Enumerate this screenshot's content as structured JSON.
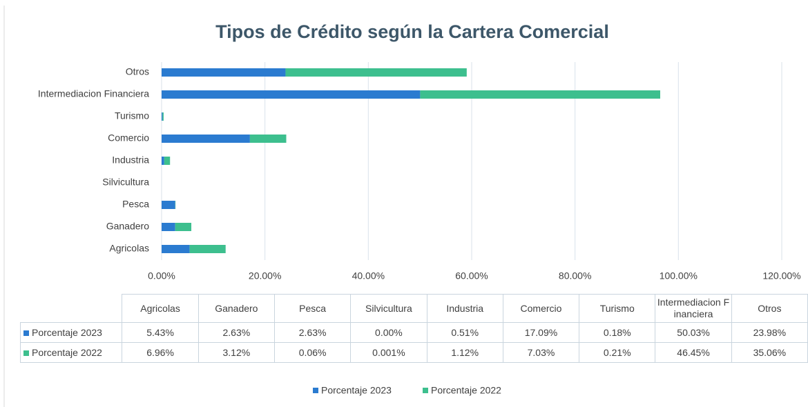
{
  "chart_data": {
    "type": "stacked_barh",
    "title": "Tipos de Crédito según la Cartera Comercial",
    "categories": [
      "Agricolas",
      "Ganadero",
      "Pesca",
      "Silvicultura",
      "Industria",
      "Comercio",
      "Turismo",
      "Intermediacion Financiera",
      "Otros"
    ],
    "series": [
      {
        "name": "Porcentaje 2023",
        "color": "#2b7bd0",
        "values": [
          5.43,
          2.63,
          2.63,
          0.0,
          0.51,
          17.09,
          0.18,
          50.03,
          23.98
        ],
        "value_labels": [
          "5.43%",
          "2.63%",
          "2.63%",
          "0.00%",
          "0.51%",
          "17.09%",
          "0.18%",
          "50.03%",
          "23.98%"
        ]
      },
      {
        "name": "Porcentaje 2022",
        "color": "#3dbf8e",
        "values": [
          6.96,
          3.12,
          0.06,
          0.001,
          1.12,
          7.03,
          0.21,
          46.45,
          35.06
        ],
        "value_labels": [
          "6.96%",
          "3.12%",
          "0.06%",
          "0.001%",
          "1.12%",
          "7.03%",
          "0.21%",
          "46.45%",
          "35.06%"
        ]
      }
    ],
    "xlim": [
      0,
      120
    ],
    "xticks": [
      {
        "value": 0,
        "label": "0.00%"
      },
      {
        "value": 20,
        "label": "20.00%"
      },
      {
        "value": 40,
        "label": "40.00%"
      },
      {
        "value": 60,
        "label": "60.00%"
      },
      {
        "value": 80,
        "label": "80.00%"
      },
      {
        "value": 100,
        "label": "100.00%"
      },
      {
        "value": 120,
        "label": "120.00%"
      }
    ],
    "grid": true,
    "legend": "bottom"
  }
}
